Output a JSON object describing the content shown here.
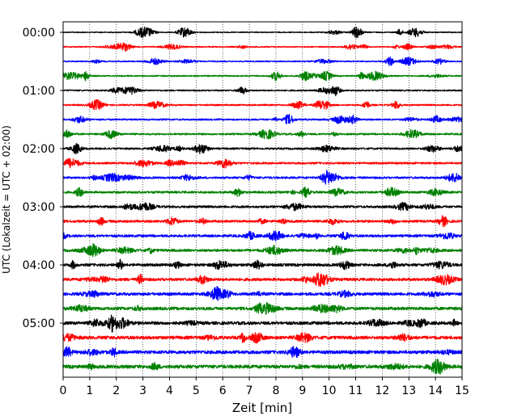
{
  "chart_data": {
    "type": "line",
    "title": "",
    "xlabel": "Zeit  [min]",
    "ylabel": "UTC (Lokalzeit = UTC + 02:00)",
    "xlim": [
      0,
      15
    ],
    "x_ticks": [
      "0",
      "1",
      "2",
      "3",
      "4",
      "5",
      "6",
      "7",
      "8",
      "9",
      "10",
      "11",
      "12",
      "13",
      "14",
      "15"
    ],
    "y_ticks": [
      "00:00",
      "01:00",
      "02:00",
      "03:00",
      "04:00",
      "05:00"
    ],
    "grid": "vertical dotted at each minute",
    "legend": "none",
    "trace_interval_minutes": 15,
    "traces": [
      {
        "start": "00:00",
        "color": "#000000"
      },
      {
        "start": "00:15",
        "color": "#ff0000"
      },
      {
        "start": "00:30",
        "color": "#0000ff"
      },
      {
        "start": "00:45",
        "color": "#008000"
      },
      {
        "start": "01:00",
        "color": "#000000"
      },
      {
        "start": "01:15",
        "color": "#ff0000"
      },
      {
        "start": "01:30",
        "color": "#0000ff"
      },
      {
        "start": "01:45",
        "color": "#008000"
      },
      {
        "start": "02:00",
        "color": "#000000"
      },
      {
        "start": "02:15",
        "color": "#ff0000"
      },
      {
        "start": "02:30",
        "color": "#0000ff"
      },
      {
        "start": "02:45",
        "color": "#008000"
      },
      {
        "start": "03:00",
        "color": "#000000"
      },
      {
        "start": "03:15",
        "color": "#ff0000"
      },
      {
        "start": "03:30",
        "color": "#0000ff"
      },
      {
        "start": "03:45",
        "color": "#008000"
      },
      {
        "start": "04:00",
        "color": "#000000"
      },
      {
        "start": "04:15",
        "color": "#ff0000"
      },
      {
        "start": "04:30",
        "color": "#0000ff"
      },
      {
        "start": "04:45",
        "color": "#008000"
      },
      {
        "start": "05:00",
        "color": "#000000"
      },
      {
        "start": "05:15",
        "color": "#ff0000"
      },
      {
        "start": "05:30",
        "color": "#0000ff"
      },
      {
        "start": "05:45",
        "color": "#008000"
      }
    ]
  }
}
